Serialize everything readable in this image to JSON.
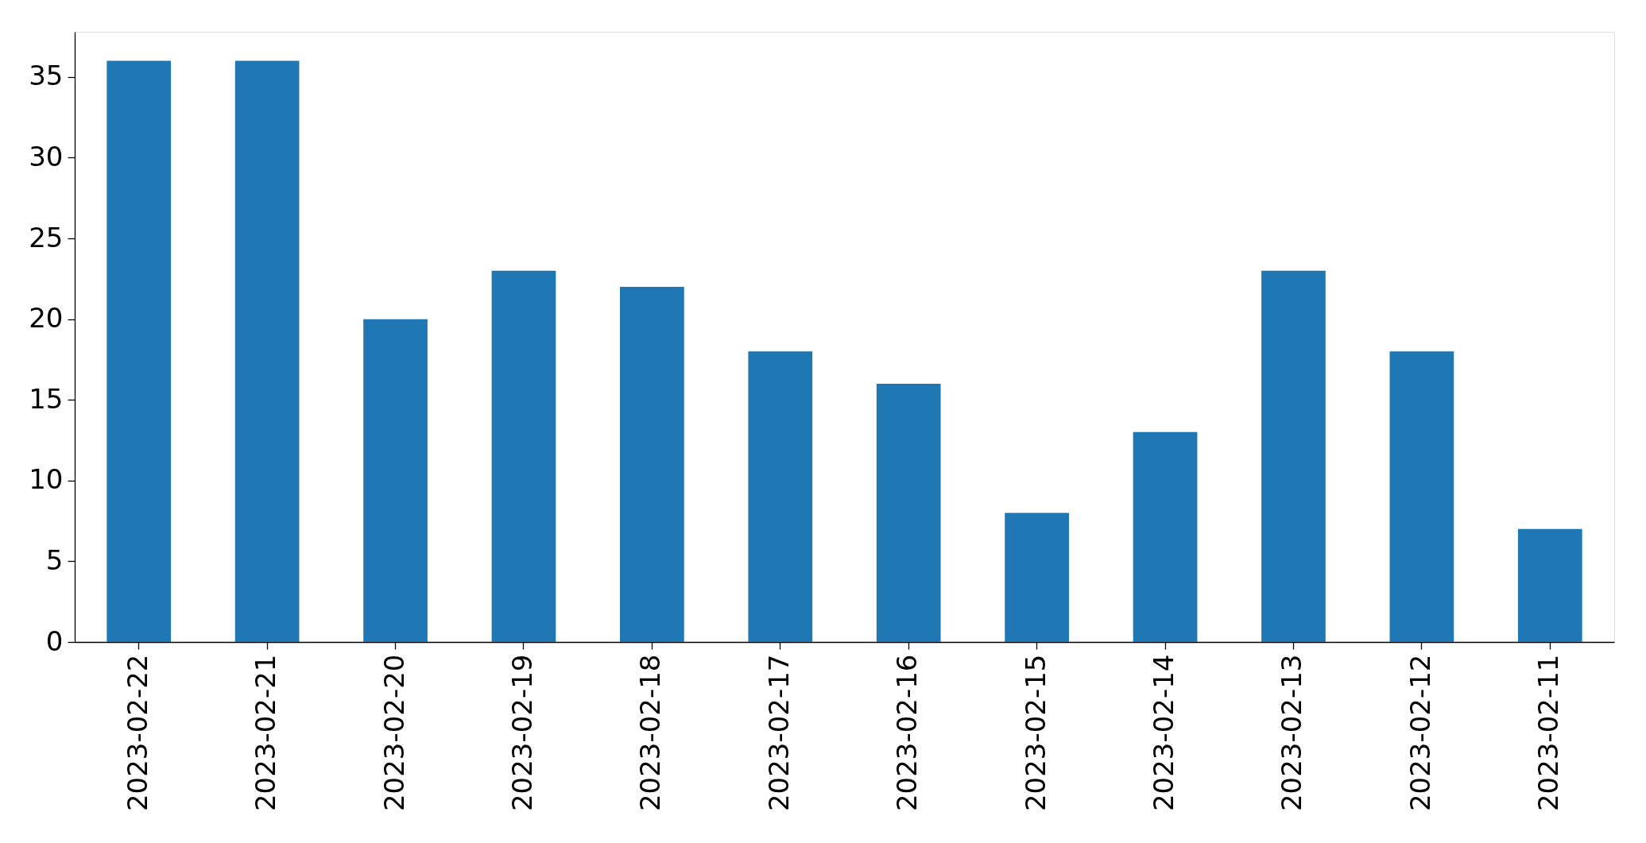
{
  "chart_data": {
    "type": "bar",
    "categories": [
      "2023-02-22",
      "2023-02-21",
      "2023-02-20",
      "2023-02-19",
      "2023-02-18",
      "2023-02-17",
      "2023-02-16",
      "2023-02-15",
      "2023-02-14",
      "2023-02-13",
      "2023-02-12",
      "2023-02-11"
    ],
    "values": [
      36,
      36,
      20,
      23,
      22,
      18,
      16,
      8,
      13,
      23,
      18,
      7
    ],
    "color": "#1f77b4",
    "ylim": [
      0,
      37.8
    ],
    "yticks": [
      0,
      5,
      10,
      15,
      20,
      25,
      30,
      35
    ]
  }
}
